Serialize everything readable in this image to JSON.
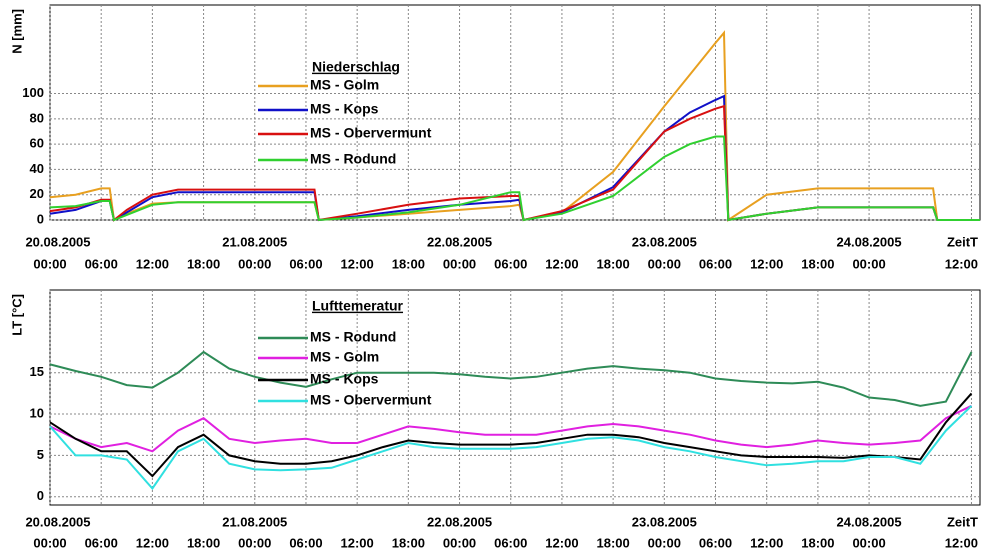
{
  "chart_data": [
    {
      "type": "line",
      "ylabel": "N [mm]",
      "legend_title": "Niederschlag",
      "xlabel": "ZeitT",
      "x": [
        0,
        3,
        6,
        7,
        7.5,
        9,
        12,
        15,
        18,
        24,
        30,
        31,
        31.5,
        36,
        42,
        48,
        54,
        55,
        55.5,
        60,
        66,
        72,
        75,
        78,
        79,
        79.5,
        84,
        90,
        96,
        102,
        103.5,
        104,
        109
      ],
      "series": [
        {
          "name": "MS - Golm",
          "color": "#e8a020",
          "values": [
            18,
            20,
            25,
            25,
            0,
            5,
            13,
            14,
            14,
            14,
            14,
            14,
            0,
            2,
            5,
            8,
            11,
            12,
            0,
            6,
            38,
            90,
            115,
            140,
            148,
            0,
            20,
            25,
            25,
            25,
            25,
            0,
            0
          ]
        },
        {
          "name": "MS - Kops",
          "color": "#1010c8",
          "values": [
            5,
            8,
            15,
            15,
            0,
            6,
            18,
            22,
            22,
            22,
            22,
            22,
            0,
            3,
            8,
            12,
            15,
            16,
            0,
            6,
            26,
            70,
            85,
            95,
            98,
            0,
            5,
            10,
            10,
            10,
            10,
            0,
            0
          ]
        },
        {
          "name": "MS - Obervermunt",
          "color": "#d81010",
          "values": [
            7,
            10,
            16,
            16,
            0,
            8,
            20,
            24,
            24,
            24,
            24,
            24,
            0,
            5,
            12,
            17,
            19,
            19,
            0,
            7,
            24,
            70,
            80,
            88,
            90,
            0,
            5,
            10,
            10,
            10,
            10,
            0,
            0
          ]
        },
        {
          "name": "MS - Rodund",
          "color": "#30d030",
          "values": [
            10,
            11,
            15,
            15,
            0,
            4,
            12,
            14,
            14,
            14,
            14,
            14,
            0,
            2,
            6,
            12,
            22,
            22,
            0,
            5,
            19,
            50,
            60,
            66,
            66,
            0,
            5,
            10,
            10,
            10,
            10,
            0,
            0
          ]
        }
      ],
      "xlim": [
        0,
        109
      ],
      "ylim": [
        0,
        170
      ],
      "yticks": [
        0,
        20,
        40,
        60,
        80,
        100
      ],
      "xticks": [
        {
          "value": 0,
          "label": "00:00"
        },
        {
          "value": 6,
          "label": "06:00"
        },
        {
          "value": 12,
          "label": "12:00"
        },
        {
          "value": 18,
          "label": "18:00"
        },
        {
          "value": 24,
          "label": "00:00"
        },
        {
          "value": 30,
          "label": "06:00"
        },
        {
          "value": 36,
          "label": "12:00"
        },
        {
          "value": 42,
          "label": "18:00"
        },
        {
          "value": 48,
          "label": "00:00"
        },
        {
          "value": 54,
          "label": "06:00"
        },
        {
          "value": 60,
          "label": "12:00"
        },
        {
          "value": 66,
          "label": "18:00"
        },
        {
          "value": 72,
          "label": "00:00"
        },
        {
          "value": 78,
          "label": "06:00"
        },
        {
          "value": 84,
          "label": "12:00"
        },
        {
          "value": 90,
          "label": "18:00"
        },
        {
          "value": 96,
          "label": "00:00"
        },
        {
          "value": 108,
          "label": "12:00"
        }
      ],
      "date_ticks": [
        {
          "value": 0,
          "label": "20.08.2005"
        },
        {
          "value": 24,
          "label": "21.08.2005"
        },
        {
          "value": 48,
          "label": "22.08.2005"
        },
        {
          "value": 72,
          "label": "23.08.2005"
        },
        {
          "value": 96,
          "label": "24.08.2005"
        }
      ],
      "grid": true
    },
    {
      "type": "line",
      "ylabel": "LT [°C]",
      "legend_title": "Lufttemeratur",
      "xlabel": "ZeitT",
      "x": [
        0,
        3,
        6,
        9,
        12,
        15,
        18,
        21,
        24,
        27,
        30,
        33,
        36,
        39,
        42,
        45,
        48,
        51,
        54,
        57,
        60,
        63,
        66,
        69,
        72,
        75,
        78,
        81,
        84,
        87,
        90,
        93,
        96,
        99,
        102,
        105,
        108
      ],
      "series": [
        {
          "name": "MS - Rodund",
          "color": "#2e8b57",
          "values": [
            16,
            15.2,
            14.5,
            13.5,
            13.2,
            15,
            17.5,
            15.5,
            14.5,
            13.8,
            13.3,
            14.2,
            15,
            15,
            15,
            15,
            14.8,
            14.5,
            14.3,
            14.5,
            15,
            15.5,
            15.8,
            15.5,
            15.3,
            15,
            14.3,
            14,
            13.8,
            13.7,
            13.9,
            13.2,
            12,
            11.7,
            11,
            11.5,
            17.5
          ]
        },
        {
          "name": "MS - Golm",
          "color": "#e020e0",
          "values": [
            8.5,
            7,
            6,
            6.5,
            5.5,
            8,
            9.5,
            7,
            6.5,
            6.8,
            7,
            6.5,
            6.5,
            7.5,
            8.5,
            8.2,
            7.8,
            7.5,
            7.5,
            7.5,
            8,
            8.5,
            8.8,
            8.5,
            8,
            7.5,
            6.8,
            6.3,
            6,
            6.3,
            6.8,
            6.5,
            6.3,
            6.5,
            6.8,
            9.5,
            11
          ]
        },
        {
          "name": "MS - Kops",
          "color": "#000000",
          "values": [
            9,
            7,
            5.5,
            5.5,
            2.5,
            6,
            7.5,
            5,
            4.3,
            4,
            4,
            4.3,
            5,
            6,
            6.8,
            6.5,
            6.3,
            6.3,
            6.3,
            6.5,
            7,
            7.5,
            7.5,
            7.2,
            6.5,
            6,
            5.5,
            5,
            4.8,
            4.8,
            4.8,
            4.7,
            5,
            4.8,
            4.5,
            9,
            12.5
          ]
        },
        {
          "name": "MS - Obervermunt",
          "color": "#30e0e0",
          "values": [
            8.5,
            5,
            5,
            4.5,
            1,
            5.5,
            7,
            4,
            3.3,
            3.2,
            3.3,
            3.5,
            4.5,
            5.5,
            6.5,
            6,
            5.8,
            5.8,
            5.8,
            6,
            6.5,
            7,
            7.2,
            6.8,
            6,
            5.5,
            4.8,
            4.3,
            3.8,
            4,
            4.3,
            4.3,
            4.8,
            4.8,
            4,
            8,
            11
          ]
        }
      ],
      "xlim": [
        0,
        109
      ],
      "ylim": [
        -1,
        25
      ],
      "yticks": [
        0,
        5,
        10,
        15
      ],
      "xticks": [
        {
          "value": 0,
          "label": "00:00"
        },
        {
          "value": 6,
          "label": "06:00"
        },
        {
          "value": 12,
          "label": "12:00"
        },
        {
          "value": 18,
          "label": "18:00"
        },
        {
          "value": 24,
          "label": "00:00"
        },
        {
          "value": 30,
          "label": "06:00"
        },
        {
          "value": 36,
          "label": "12:00"
        },
        {
          "value": 42,
          "label": "18:00"
        },
        {
          "value": 48,
          "label": "00:00"
        },
        {
          "value": 54,
          "label": "06:00"
        },
        {
          "value": 60,
          "label": "12:00"
        },
        {
          "value": 66,
          "label": "18:00"
        },
        {
          "value": 72,
          "label": "00:00"
        },
        {
          "value": 78,
          "label": "06:00"
        },
        {
          "value": 84,
          "label": "12:00"
        },
        {
          "value": 90,
          "label": "18:00"
        },
        {
          "value": 96,
          "label": "00:00"
        },
        {
          "value": 108,
          "label": "12:00"
        }
      ],
      "date_ticks": [
        {
          "value": 0,
          "label": "20.08.2005"
        },
        {
          "value": 24,
          "label": "21.08.2005"
        },
        {
          "value": 48,
          "label": "22.08.2005"
        },
        {
          "value": 72,
          "label": "23.08.2005"
        },
        {
          "value": 96,
          "label": "24.08.2005"
        }
      ],
      "grid": true
    }
  ]
}
